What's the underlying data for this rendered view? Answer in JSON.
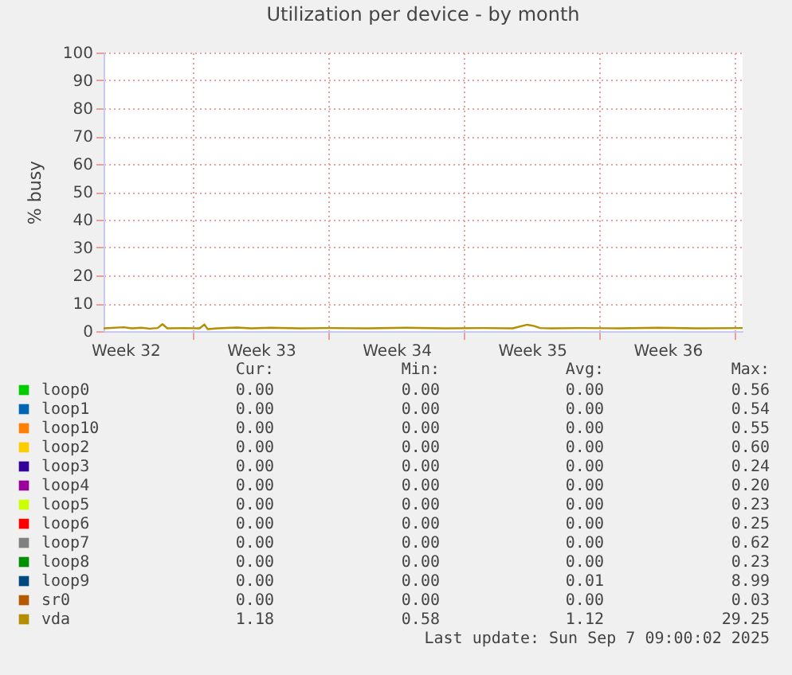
{
  "chart_data": {
    "type": "line",
    "title": "Utilization per device - by month",
    "ylabel": "% busy",
    "xlim": [
      "2025-08-05T09:00",
      "2025-09-07T09:00"
    ],
    "xticks": [
      {
        "value": "2025-08-06T12:00",
        "label": "Week 32"
      },
      {
        "value": "2025-08-10T00:00",
        "label": null
      },
      {
        "value": "2025-08-13T12:00",
        "label": "Week 33"
      },
      {
        "value": "2025-08-17T00:00",
        "label": null
      },
      {
        "value": "2025-08-20T12:00",
        "label": "Week 34"
      },
      {
        "value": "2025-08-24T00:00",
        "label": null
      },
      {
        "value": "2025-08-27T12:00",
        "label": "Week 35"
      },
      {
        "value": "2025-08-31T00:00",
        "label": null
      },
      {
        "value": "2025-09-03T12:00",
        "label": "Week 36"
      },
      {
        "value": "2025-09-07T00:00",
        "label": null
      }
    ],
    "ylim": [
      0,
      100
    ],
    "yticks": [
      0,
      10,
      20,
      30,
      40,
      50,
      60,
      70,
      80,
      90,
      100
    ],
    "grid": true,
    "legend": "bottom",
    "marker": "none",
    "line_style": "solid",
    "series": [
      {
        "name": "loop0",
        "color": "#00cc00"
      },
      {
        "name": "loop1",
        "color": "#0066b3"
      },
      {
        "name": "loop10",
        "color": "#ff8000"
      },
      {
        "name": "loop2",
        "color": "#ffcc00"
      },
      {
        "name": "loop3",
        "color": "#330099"
      },
      {
        "name": "loop4",
        "color": "#990099"
      },
      {
        "name": "loop5",
        "color": "#ccff00"
      },
      {
        "name": "loop6",
        "color": "#ff0000"
      },
      {
        "name": "loop7",
        "color": "#808080"
      },
      {
        "name": "loop8",
        "color": "#008f00"
      },
      {
        "name": "loop9",
        "color": "#00487d"
      },
      {
        "name": "sr0",
        "color": "#b35a00"
      },
      {
        "name": "vda",
        "color": "#b38f00",
        "x": [
          "2025-08-05T09:00",
          "2025-08-06T10:00",
          "2025-08-06T20:00",
          "2025-08-07T08:00",
          "2025-08-07T18:00",
          "2025-08-08T04:00",
          "2025-08-08T10:00",
          "2025-08-08T16:00",
          "2025-08-09T12:00",
          "2025-08-10T08:00",
          "2025-08-10T14:00",
          "2025-08-10T18:00",
          "2025-08-11T06:00",
          "2025-08-12T06:00",
          "2025-08-13T00:00",
          "2025-08-14T00:00",
          "2025-08-15T12:00",
          "2025-08-17T00:00",
          "2025-08-19T00:00",
          "2025-08-21T00:00",
          "2025-08-23T00:00",
          "2025-08-25T00:00",
          "2025-08-26T12:00",
          "2025-08-27T06:00",
          "2025-08-27T14:00",
          "2025-08-27T22:00",
          "2025-08-28T12:00",
          "2025-08-30T00:00",
          "2025-09-01T00:00",
          "2025-09-03T00:00",
          "2025-09-05T00:00",
          "2025-09-07T09:00"
        ],
        "values": [
          1.0,
          1.4,
          1.0,
          1.2,
          0.9,
          1.1,
          2.5,
          1.0,
          1.1,
          1.0,
          2.4,
          0.7,
          1.0,
          1.3,
          1.0,
          1.2,
          1.0,
          1.1,
          1.0,
          1.2,
          1.0,
          1.1,
          1.0,
          2.3,
          1.9,
          1.1,
          1.0,
          1.1,
          1.0,
          1.2,
          1.0,
          1.1
        ]
      }
    ],
    "annotations": [
      "Cur: Min: Avg: Max:",
      "0.00 0.00 0.00 0.56",
      "0.00 0.00 0.00 0.54",
      "0.00 0.00 0.00 0.55",
      "0.00 0.00 0.00 0.60",
      "0.00 0.00 0.00 0.24",
      "0.00 0.00 0.00 0.20",
      "0.00 0.00 0.00 0.23",
      "0.00 0.00 0.00 0.25",
      "0.00 0.00 0.00 0.62",
      "0.00 0.00 0.00 0.23",
      "0.00 0.00 0.01 8.99",
      "0.00 0.00 0.00 0.03",
      "1.18 0.58 1.12 29.25",
      "Last update: Sun Sep  7 09:00:02 2025"
    ]
  }
}
